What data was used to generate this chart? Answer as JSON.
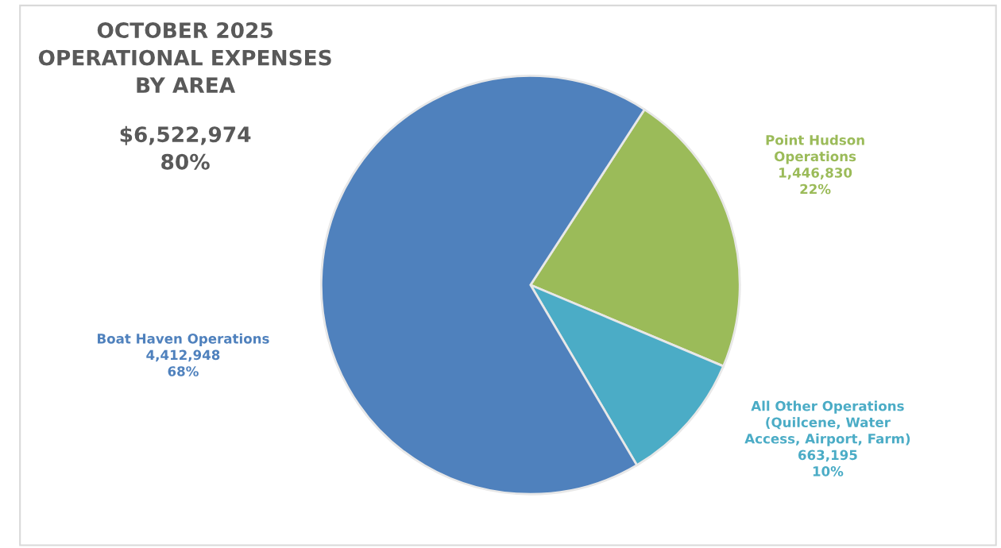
{
  "chart_data": {
    "type": "pie",
    "title": "OCTOBER 2025\nOPERATIONAL EXPENSES\nBY AREA",
    "subtitle": "$6,522,974\n80%",
    "categories": [
      "Point Hudson\nOperations",
      "All Other Operations\n(Quilcene, Water\nAccess, Airport, Farm)",
      "Boat Haven Operations"
    ],
    "values": [
      1446830,
      663195,
      4412948
    ],
    "colors": [
      "#9bbb59",
      "#4bacc6",
      "#4f81bd"
    ],
    "value_labels": [
      "1,446,830\n22%",
      "663,195\n10%",
      "4,412,948\n68%"
    ],
    "legend": false
  }
}
